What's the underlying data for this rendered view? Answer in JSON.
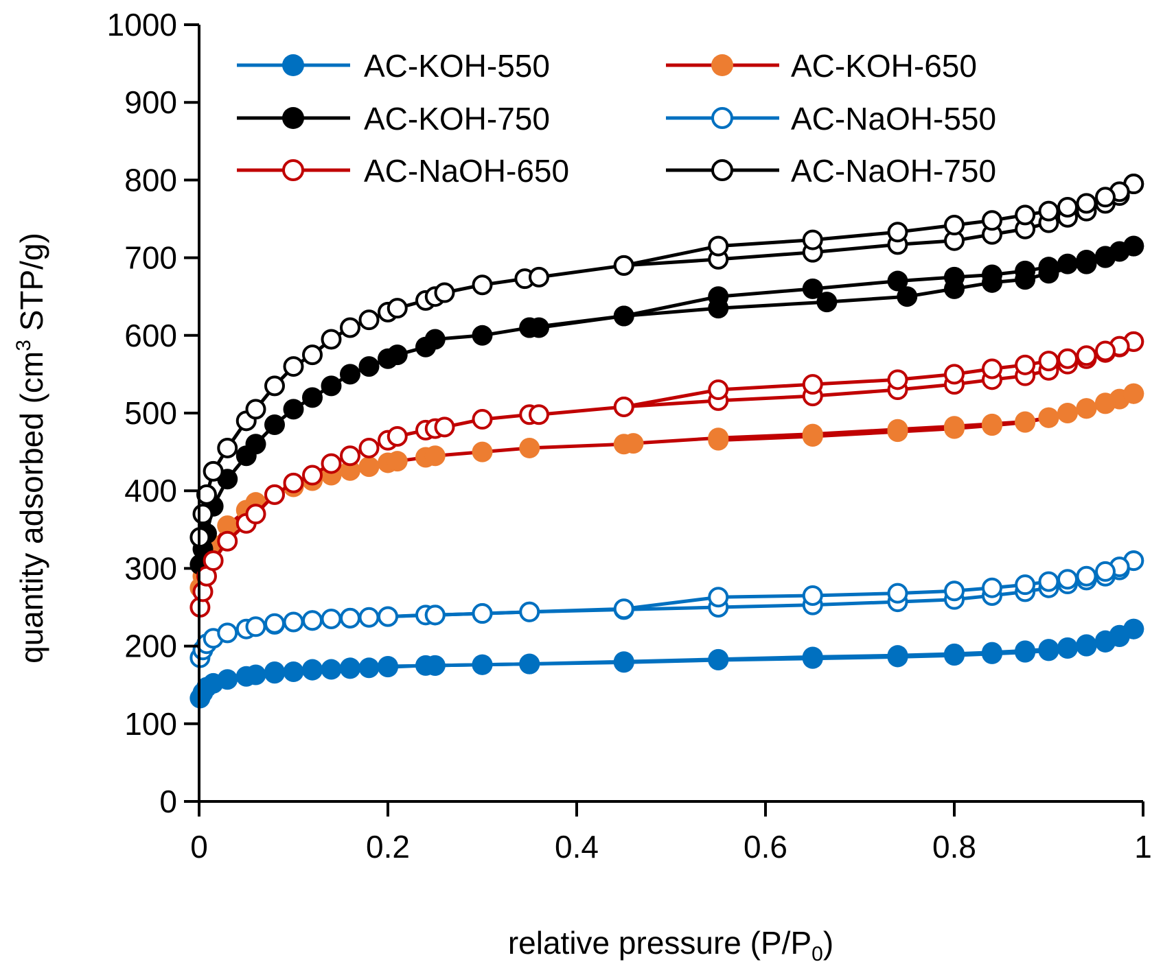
{
  "chart_data": {
    "type": "line",
    "title": "",
    "xlabel": "relative pressure (P/P",
    "xlabel_sub": "0",
    "xlabel_end": ")",
    "ylabel": "quantity adsorbed (cm",
    "ylabel_sup": "3",
    "ylabel_end": " STP/g)",
    "xlim": [
      0,
      1
    ],
    "ylim": [
      0,
      1000
    ],
    "x_ticks": [
      0,
      0.2,
      0.4,
      0.6,
      0.8,
      1
    ],
    "x_tick_labels": [
      "0",
      "0.2",
      "0.4",
      "0.6",
      "0.8",
      "1"
    ],
    "y_ticks": [
      0,
      100,
      200,
      300,
      400,
      500,
      600,
      700,
      800,
      900,
      1000
    ],
    "y_tick_labels": [
      "0",
      "100",
      "200",
      "300",
      "400",
      "500",
      "600",
      "700",
      "800",
      "900",
      "1000"
    ],
    "grid": false,
    "legend_position": "top",
    "series": [
      {
        "name": "AC-KOH-550",
        "color": "#0070C0",
        "marker_fill": "#0070C0",
        "marker_filled": true,
        "adsorption": {
          "x": [
            0.001,
            0.004,
            0.008,
            0.015,
            0.03,
            0.05,
            0.06,
            0.08,
            0.1,
            0.12,
            0.14,
            0.16,
            0.18,
            0.2,
            0.24,
            0.25,
            0.3,
            0.35,
            0.45,
            0.55,
            0.65,
            0.74,
            0.8,
            0.84,
            0.875,
            0.9,
            0.92,
            0.94,
            0.96,
            0.975,
            0.99
          ],
          "y": [
            133,
            140,
            147,
            152,
            157,
            161,
            163,
            165,
            167,
            169,
            170,
            171,
            172,
            173,
            175,
            175,
            176,
            177,
            179,
            182,
            184,
            186,
            188,
            190,
            192,
            194,
            197,
            200,
            205,
            212,
            222
          ]
        },
        "desorption": {
          "x": [
            0.99,
            0.975,
            0.96,
            0.94,
            0.92,
            0.9,
            0.875,
            0.84,
            0.8,
            0.74,
            0.65,
            0.55,
            0.45,
            0.35,
            0.3,
            0.25,
            0.2,
            0.16,
            0.12,
            0.08
          ],
          "y": [
            222,
            214,
            207,
            202,
            198,
            196,
            194,
            192,
            190,
            188,
            186,
            183,
            180,
            177,
            176,
            175,
            174,
            172,
            170,
            167
          ]
        }
      },
      {
        "name": "AC-KOH-650",
        "color": "#C00000",
        "marker_fill": "#ED7D31",
        "marker_filled": true,
        "adsorption": {
          "x": [
            0.001,
            0.004,
            0.008,
            0.015,
            0.03,
            0.05,
            0.06,
            0.08,
            0.1,
            0.12,
            0.14,
            0.16,
            0.18,
            0.2,
            0.21,
            0.24,
            0.25,
            0.3,
            0.35,
            0.45,
            0.46,
            0.55,
            0.65,
            0.74,
            0.8,
            0.84,
            0.875,
            0.9,
            0.92,
            0.94,
            0.96,
            0.975,
            0.99
          ],
          "y": [
            275,
            290,
            305,
            330,
            355,
            375,
            385,
            395,
            405,
            413,
            420,
            426,
            431,
            436,
            438,
            443,
            445,
            450,
            455,
            460,
            461,
            468,
            473,
            479,
            483,
            486,
            489,
            494,
            500,
            506,
            512,
            518,
            525
          ]
        },
        "desorption": {
          "x": [
            0.99,
            0.96,
            0.94,
            0.9,
            0.875,
            0.84,
            0.8,
            0.74,
            0.65,
            0.55
          ],
          "y": [
            525,
            513,
            506,
            494,
            488,
            484,
            480,
            476,
            470,
            465
          ]
        }
      },
      {
        "name": "AC-KOH-750",
        "color": "#000000",
        "marker_fill": "#000000",
        "marker_filled": true,
        "adsorption": {
          "x": [
            0.001,
            0.004,
            0.008,
            0.015,
            0.03,
            0.05,
            0.06,
            0.08,
            0.1,
            0.12,
            0.14,
            0.16,
            0.18,
            0.2,
            0.21,
            0.24,
            0.25,
            0.3,
            0.35,
            0.36,
            0.45,
            0.55,
            0.65,
            0.74,
            0.8,
            0.84,
            0.875,
            0.9,
            0.92,
            0.94,
            0.96,
            0.975,
            0.99
          ],
          "y": [
            305,
            325,
            345,
            380,
            415,
            445,
            460,
            485,
            505,
            520,
            535,
            550,
            560,
            570,
            575,
            585,
            595,
            600,
            610,
            610,
            625,
            650,
            660,
            670,
            675,
            678,
            683,
            688,
            692,
            697,
            702,
            708,
            715
          ]
        },
        "desorption": {
          "x": [
            0.99,
            0.96,
            0.94,
            0.9,
            0.875,
            0.84,
            0.8,
            0.75,
            0.665,
            0.55,
            0.45,
            0.35
          ],
          "y": [
            715,
            700,
            692,
            680,
            672,
            668,
            660,
            650,
            643,
            635,
            625,
            610
          ]
        }
      },
      {
        "name": "AC-NaOH-550",
        "color": "#0070C0",
        "marker_fill": "#ffffff",
        "marker_filled": false,
        "adsorption": {
          "x": [
            0.001,
            0.004,
            0.008,
            0.015,
            0.03,
            0.05,
            0.06,
            0.08,
            0.1,
            0.12,
            0.14,
            0.16,
            0.18,
            0.2,
            0.24,
            0.25,
            0.3,
            0.35,
            0.45,
            0.55,
            0.65,
            0.74,
            0.8,
            0.84,
            0.875,
            0.9,
            0.92,
            0.94,
            0.96,
            0.975,
            0.99
          ],
          "y": [
            185,
            195,
            203,
            210,
            217,
            222,
            225,
            228,
            231,
            233,
            235,
            236,
            237,
            238,
            240,
            240,
            242,
            244,
            247,
            250,
            253,
            257,
            260,
            265,
            270,
            275,
            280,
            285,
            290,
            298,
            310
          ]
        },
        "desorption": {
          "x": [
            0.99,
            0.975,
            0.96,
            0.94,
            0.92,
            0.9,
            0.875,
            0.84,
            0.8,
            0.74,
            0.65,
            0.55,
            0.45,
            0.35,
            0.3,
            0.25,
            0.2,
            0.16,
            0.12,
            0.08
          ],
          "y": [
            310,
            302,
            296,
            290,
            286,
            283,
            279,
            275,
            271,
            268,
            265,
            263,
            248,
            244,
            242,
            240,
            238,
            236,
            233,
            229
          ]
        }
      },
      {
        "name": "AC-NaOH-650",
        "color": "#C00000",
        "marker_fill": "#ffffff",
        "marker_filled": false,
        "adsorption": {
          "x": [
            0.001,
            0.004,
            0.008,
            0.015,
            0.03,
            0.05,
            0.06,
            0.08,
            0.1,
            0.12,
            0.14,
            0.16,
            0.18,
            0.2,
            0.21,
            0.24,
            0.25,
            0.26,
            0.3,
            0.35,
            0.36,
            0.45,
            0.55,
            0.65,
            0.74,
            0.8,
            0.84,
            0.875,
            0.9,
            0.92,
            0.94,
            0.96,
            0.975,
            0.99
          ],
          "y": [
            250,
            270,
            290,
            310,
            335,
            358,
            370,
            395,
            410,
            420,
            435,
            445,
            455,
            465,
            470,
            478,
            480,
            482,
            492,
            498,
            498,
            508,
            516,
            522,
            530,
            537,
            543,
            548,
            555,
            563,
            570,
            578,
            585,
            592
          ]
        },
        "desorption": {
          "x": [
            0.99,
            0.975,
            0.96,
            0.94,
            0.92,
            0.9,
            0.875,
            0.84,
            0.8,
            0.74,
            0.65,
            0.55,
            0.45
          ],
          "y": [
            592,
            586,
            580,
            574,
            570,
            567,
            562,
            557,
            550,
            543,
            537,
            530,
            508
          ]
        }
      },
      {
        "name": "AC-NaOH-750",
        "color": "#000000",
        "marker_fill": "#ffffff",
        "marker_filled": false,
        "adsorption": {
          "x": [
            0.001,
            0.004,
            0.008,
            0.015,
            0.03,
            0.05,
            0.06,
            0.08,
            0.1,
            0.12,
            0.14,
            0.16,
            0.18,
            0.2,
            0.21,
            0.24,
            0.25,
            0.26,
            0.3,
            0.345,
            0.36,
            0.45,
            0.55,
            0.65,
            0.74,
            0.8,
            0.84,
            0.875,
            0.9,
            0.92,
            0.94,
            0.96,
            0.975,
            0.99
          ],
          "y": [
            340,
            370,
            395,
            425,
            455,
            490,
            505,
            535,
            560,
            575,
            595,
            610,
            620,
            630,
            635,
            645,
            650,
            655,
            665,
            673,
            675,
            690,
            698,
            707,
            717,
            722,
            730,
            737,
            745,
            752,
            760,
            770,
            780,
            795
          ]
        },
        "desorption": {
          "x": [
            0.99,
            0.975,
            0.96,
            0.94,
            0.92,
            0.9,
            0.875,
            0.84,
            0.8,
            0.74,
            0.65,
            0.55,
            0.45
          ],
          "y": [
            795,
            785,
            778,
            770,
            765,
            760,
            755,
            748,
            742,
            733,
            723,
            715,
            690
          ]
        }
      }
    ]
  }
}
